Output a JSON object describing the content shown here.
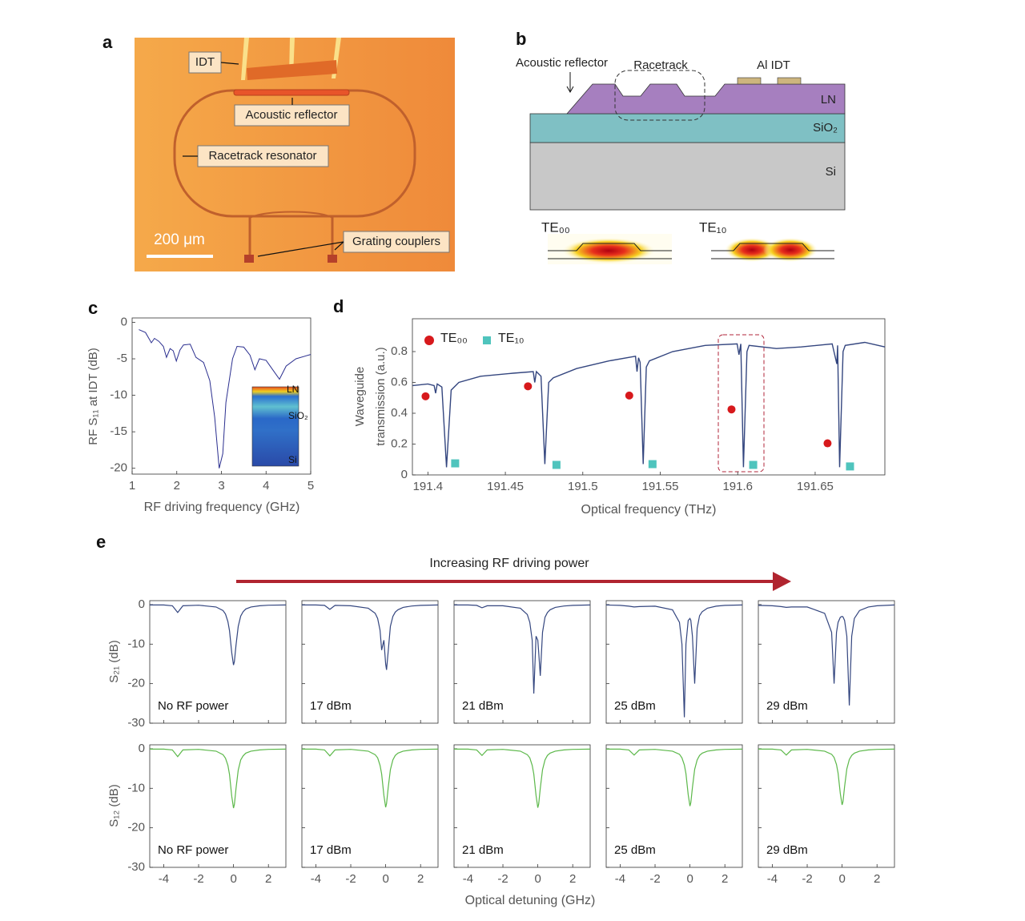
{
  "panel_labels": [
    "a",
    "b",
    "c",
    "d",
    "e"
  ],
  "micrograph": {
    "labels": [
      "IDT",
      "Acoustic reflector",
      "Racetrack resonator",
      "Grating couplers"
    ],
    "scale_bar": "200 μm"
  },
  "schematic": {
    "acoustic_reflector": "Acoustic reflector",
    "racetrack": "Racetrack",
    "idt": "Al IDT",
    "layers": [
      "LN",
      "SiO₂",
      "Si"
    ],
    "modes": [
      "TE₀₀",
      "TE₁₀"
    ]
  },
  "chart_data": [
    {
      "type": "line",
      "ylabel": "RF S₁₁ at IDT (dB)",
      "xlabel": "RF driving frequency (GHz)",
      "xlim": [
        1,
        5
      ],
      "xticks": [
        1,
        2,
        3,
        4,
        5
      ],
      "ylim": [
        -20.8,
        0.6
      ],
      "yticks": [
        0,
        -5,
        -10,
        -15,
        -20
      ],
      "color": "#2b2f8f",
      "x": [
        1.15,
        1.3,
        1.43,
        1.5,
        1.6,
        1.7,
        1.77,
        1.85,
        1.92,
        1.99,
        2.07,
        2.15,
        2.3,
        2.43,
        2.6,
        2.74,
        2.85,
        2.95,
        3.03,
        3.1,
        3.25,
        3.35,
        3.5,
        3.64,
        3.75,
        3.85,
        4.0,
        4.15,
        4.3,
        4.45,
        4.67,
        5
      ],
      "values": [
        -1,
        -1.4,
        -2.8,
        -2.2,
        -2.6,
        -3.3,
        -4.8,
        -3.6,
        -3.9,
        -5.3,
        -3.8,
        -3.1,
        -3,
        -4.8,
        -5.5,
        -8,
        -13,
        -20,
        -18,
        -11,
        -5,
        -3.3,
        -3.4,
        -4.5,
        -6.5,
        -5,
        -5.2,
        -6.5,
        -7.8,
        -6,
        -5,
        -4.4
      ],
      "inset_labels": [
        "LN",
        "SiO₂",
        "Si"
      ]
    },
    {
      "type": "line",
      "ylabel": [
        "Waveguide",
        "transmission (a.u.)"
      ],
      "xlabel": "Optical frequency (THz)",
      "xlim": [
        191.39,
        191.695
      ],
      "xticks": [
        191.4,
        191.45,
        191.5,
        191.55,
        191.6,
        191.65
      ],
      "ylim": [
        0,
        1.013
      ],
      "yticks": [
        0,
        0.2,
        0.4,
        0.6,
        0.8
      ],
      "color": "#34467f",
      "legend": "upper left",
      "x": [
        191.3902,
        191.4,
        191.404,
        191.405,
        191.406,
        191.409,
        191.412,
        191.415,
        191.42,
        191.434,
        191.455,
        191.468,
        191.469,
        191.47,
        191.473,
        191.4755,
        191.478,
        191.481,
        191.496,
        191.517,
        191.534,
        191.535,
        191.536,
        191.537,
        191.539,
        191.541,
        191.543,
        191.558,
        191.579,
        191.5996,
        191.6008,
        191.602,
        191.6037,
        191.606,
        191.6073,
        191.625,
        191.641,
        191.661,
        191.664,
        191.6645,
        191.6658,
        191.668,
        191.6694,
        191.682,
        191.695
      ],
      "values": [
        0.58,
        0.59,
        0.58,
        0.53,
        0.59,
        0.57,
        0.05,
        0.55,
        0.6,
        0.64,
        0.66,
        0.67,
        0.6,
        0.67,
        0.64,
        0.07,
        0.6,
        0.63,
        0.69,
        0.74,
        0.77,
        0.67,
        0.76,
        0.73,
        0.07,
        0.7,
        0.74,
        0.8,
        0.84,
        0.85,
        0.78,
        0.85,
        0.05,
        0.8,
        0.84,
        0.82,
        0.83,
        0.85,
        0.72,
        0.84,
        0.05,
        0.8,
        0.84,
        0.86,
        0.83
      ],
      "markers": [
        {
          "name": "TE₀₀",
          "shape": "circle",
          "color": "#d7191c",
          "x": [
            191.3985,
            191.4646,
            191.53,
            191.596,
            191.658
          ],
          "values": [
            0.51,
            0.575,
            0.515,
            0.425,
            0.205
          ]
        },
        {
          "name": "TE₁₀",
          "shape": "square",
          "color": "#4fc4bd",
          "x": [
            191.4176,
            191.483,
            191.545,
            191.61,
            191.6725
          ],
          "values": [
            0.075,
            0.065,
            0.07,
            0.065,
            0.055
          ]
        }
      ]
    },
    {
      "type": "line",
      "title": "Increasing RF driving power",
      "xlabel": "Optical detuning (GHz)",
      "xlim": [
        -4.8,
        3
      ],
      "xticks": [
        -4,
        -2,
        0,
        2
      ],
      "ylim": [
        -30,
        1
      ],
      "yticks": [
        0,
        -10,
        -20,
        -30
      ],
      "x": [
        -4.8,
        -4,
        -3.5,
        -3.2,
        -2.9,
        -2,
        -1,
        -0.6,
        -0.46,
        -0.32,
        -0.23,
        -0.1,
        0,
        0.05,
        0.14,
        0.27,
        0.41,
        0.55,
        0.7,
        1,
        1.5,
        2,
        3
      ],
      "rows": [
        {
          "ylabel": "S₂₁ (dB)",
          "color": "#34467f",
          "series": [
            {
              "name": "No RF power",
              "values": [
                -0.1,
                -0.1,
                -0.3,
                -2,
                -0.3,
                -0.15,
                -0.6,
                -1.5,
                -2.4,
                -4.3,
                -6.6,
                -12.2,
                -15.3,
                -14.4,
                -10.3,
                -5.5,
                -2.9,
                -1.8,
                -1.1,
                -0.6,
                -0.3,
                -0.15,
                -0.1
              ]
            },
            {
              "name": "17 dBm",
              "values": [
                -0.1,
                -0.1,
                -0.2,
                -1.2,
                -0.2,
                -0.3,
                -0.9,
                -2.2,
                -3.5,
                -6.5,
                -11.5,
                -9,
                -15,
                -16.5,
                -12,
                -5.5,
                -3,
                -1.9,
                -1.3,
                -0.7,
                -0.35,
                -0.2,
                -0.1
              ]
            },
            {
              "name": "21 dBm",
              "values": [
                -0.1,
                -0.1,
                -0.2,
                -0.8,
                -0.3,
                -0.3,
                -0.9,
                -2.5,
                -4.5,
                -9,
                -22.5,
                -8,
                -9,
                -12,
                -18,
                -7,
                -3.2,
                -2,
                -1.3,
                -0.7,
                -0.35,
                -0.2,
                -0.1
              ]
            },
            {
              "name": "25 dBm",
              "values": [
                -0.1,
                -0.2,
                -0.4,
                -0.6,
                -0.5,
                -0.4,
                -1.3,
                -4.5,
                -10,
                -28.5,
                -10,
                -4,
                -3.5,
                -4,
                -8,
                -20,
                -6,
                -2.8,
                -1.8,
                -0.9,
                -0.4,
                -0.2,
                -0.1
              ]
            },
            {
              "name": "29 dBm",
              "values": [
                -0.2,
                -0.3,
                -0.5,
                -0.7,
                -0.6,
                -0.6,
                -2.2,
                -7,
                -20,
                -7,
                -4.5,
                -3.2,
                -3,
                -3.1,
                -4,
                -8,
                -25.5,
                -8,
                -3.5,
                -1.5,
                -0.6,
                -0.3,
                -0.1
              ]
            }
          ]
        },
        {
          "ylabel": "S₁₂ (dB)",
          "color": "#5cb84a",
          "series": [
            {
              "name": "No RF power",
              "values": [
                -0.1,
                -0.1,
                -0.3,
                -2,
                -0.3,
                -0.15,
                -0.6,
                -1.5,
                -2.4,
                -4.2,
                -6.5,
                -12,
                -15,
                -14.1,
                -10.1,
                -5.4,
                -2.8,
                -1.8,
                -1.1,
                -0.6,
                -0.3,
                -0.15,
                -0.1
              ]
            },
            {
              "name": "17 dBm",
              "values": [
                -0.1,
                -0.1,
                -0.3,
                -1.8,
                -0.3,
                -0.15,
                -0.6,
                -1.5,
                -2.3,
                -4.2,
                -6.4,
                -11.8,
                -14.8,
                -13.9,
                -10,
                -5.3,
                -2.8,
                -1.7,
                -1.1,
                -0.6,
                -0.3,
                -0.15,
                -0.1
              ]
            },
            {
              "name": "21 dBm",
              "values": [
                -0.1,
                -0.1,
                -0.3,
                -1.7,
                -0.3,
                -0.15,
                -0.6,
                -1.5,
                -2.3,
                -4.2,
                -6.4,
                -11.8,
                -14.9,
                -14,
                -10,
                -5.3,
                -2.8,
                -1.7,
                -1.1,
                -0.6,
                -0.3,
                -0.15,
                -0.1
              ]
            },
            {
              "name": "25 dBm",
              "values": [
                -0.1,
                -0.1,
                -0.3,
                -1.6,
                -0.3,
                -0.15,
                -0.6,
                -1.4,
                -2.3,
                -4.1,
                -6.3,
                -11.6,
                -14.5,
                -13.6,
                -9.8,
                -5.2,
                -2.8,
                -1.7,
                -1.1,
                -0.6,
                -0.3,
                -0.15,
                -0.1
              ]
            },
            {
              "name": "29 dBm",
              "values": [
                -0.1,
                -0.1,
                -0.3,
                -1.6,
                -0.3,
                -0.15,
                -0.6,
                -1.4,
                -2.2,
                -4,
                -6.2,
                -11.4,
                -14.2,
                -13.4,
                -9.6,
                -5.1,
                -2.7,
                -1.7,
                -1.1,
                -0.6,
                -0.3,
                -0.15,
                -0.1
              ]
            }
          ]
        }
      ]
    }
  ]
}
